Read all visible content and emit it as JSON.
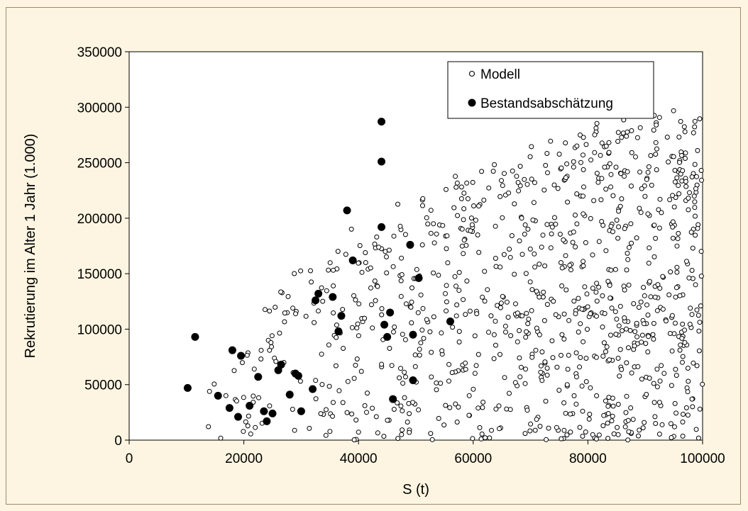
{
  "chart_data": {
    "type": "scatter",
    "title": "",
    "xlabel": "S (t)",
    "ylabel": "Rekrutierung im Alter 1 Jahr (1.000)",
    "xlim": [
      0,
      100000
    ],
    "ylim": [
      0,
      350000
    ],
    "x_ticks": [
      0,
      20000,
      40000,
      60000,
      80000,
      100000
    ],
    "y_ticks": [
      0,
      50000,
      100000,
      150000,
      200000,
      250000,
      300000,
      350000
    ],
    "x_tick_labels": [
      "0",
      "20000",
      "40000",
      "60000",
      "80000",
      "100000"
    ],
    "y_tick_labels": [
      "0",
      "50000",
      "100000",
      "150000",
      "200000",
      "250000",
      "300000",
      "350000"
    ],
    "grid": false,
    "legend_position": "top-right",
    "series": [
      {
        "name": "Modell",
        "marker": "open-circle",
        "color": "#000000",
        "cloud": {
          "count": 1000,
          "x_range": [
            10000,
            100000
          ],
          "envelope_x": [
            10000,
            15000,
            20000,
            25000,
            30000,
            35000,
            40000,
            45000,
            50000,
            55000,
            60000,
            70000,
            80000,
            90000,
            100000
          ],
          "envelope_y": [
            70000,
            98000,
            120000,
            140000,
            155000,
            175000,
            200000,
            210000,
            220000,
            235000,
            245000,
            265000,
            285000,
            295000,
            300000
          ]
        }
      },
      {
        "name": "Bestandsabschätzung",
        "marker": "filled-circle",
        "color": "#000000",
        "points": [
          [
            10200,
            47000
          ],
          [
            11500,
            93000
          ],
          [
            15500,
            40000
          ],
          [
            17500,
            29000
          ],
          [
            18000,
            81000
          ],
          [
            19000,
            21000
          ],
          [
            19500,
            76000
          ],
          [
            21000,
            31000
          ],
          [
            22500,
            57000
          ],
          [
            23500,
            26000
          ],
          [
            24000,
            17000
          ],
          [
            25000,
            24000
          ],
          [
            26000,
            63000
          ],
          [
            26500,
            68000
          ],
          [
            28000,
            41000
          ],
          [
            29000,
            60000
          ],
          [
            29500,
            58000
          ],
          [
            30000,
            26000
          ],
          [
            32000,
            46000
          ],
          [
            32500,
            126000
          ],
          [
            33000,
            132000
          ],
          [
            35500,
            129000
          ],
          [
            36500,
            98000
          ],
          [
            37000,
            112000
          ],
          [
            38000,
            207000
          ],
          [
            39000,
            162000
          ],
          [
            44000,
            287000
          ],
          [
            44000,
            251000
          ],
          [
            44000,
            192000
          ],
          [
            44500,
            104000
          ],
          [
            45000,
            93000
          ],
          [
            45500,
            115000
          ],
          [
            46000,
            37000
          ],
          [
            49000,
            176000
          ],
          [
            49500,
            95000
          ],
          [
            49500,
            54000
          ],
          [
            50500,
            146000
          ],
          [
            56000,
            107000
          ]
        ]
      }
    ]
  }
}
